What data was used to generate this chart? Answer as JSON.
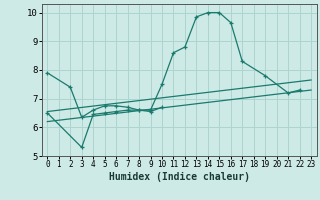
{
  "title": "",
  "xlabel": "Humidex (Indice chaleur)",
  "bg_color": "#ceeae6",
  "grid_color": "#aed4cf",
  "line_color": "#1a7a6e",
  "xlim": [
    -0.5,
    23.5
  ],
  "ylim": [
    5,
    10.3
  ],
  "xticks": [
    0,
    1,
    2,
    3,
    4,
    5,
    6,
    7,
    8,
    9,
    10,
    11,
    12,
    13,
    14,
    15,
    16,
    17,
    18,
    19,
    20,
    21,
    22,
    23
  ],
  "yticks": [
    5,
    6,
    7,
    8,
    9,
    10
  ],
  "curve1_x": [
    0,
    2,
    3,
    4,
    5,
    6,
    7,
    8,
    9,
    10,
    11,
    12,
    13,
    14,
    15,
    16,
    17,
    19,
    21,
    22
  ],
  "curve1_y": [
    7.9,
    7.4,
    6.35,
    6.6,
    6.75,
    6.75,
    6.7,
    6.6,
    6.6,
    7.5,
    8.6,
    8.8,
    9.85,
    10.0,
    10.0,
    9.65,
    8.3,
    7.8,
    7.2,
    7.3
  ],
  "curve2_x": [
    0,
    3,
    4,
    5,
    6,
    7,
    8,
    9,
    10
  ],
  "curve2_y": [
    6.5,
    5.3,
    6.45,
    6.5,
    6.55,
    6.6,
    6.6,
    6.55,
    6.7
  ],
  "line1_x": [
    0,
    23
  ],
  "line1_y": [
    6.2,
    7.3
  ],
  "line2_x": [
    0,
    23
  ],
  "line2_y": [
    6.55,
    7.65
  ]
}
